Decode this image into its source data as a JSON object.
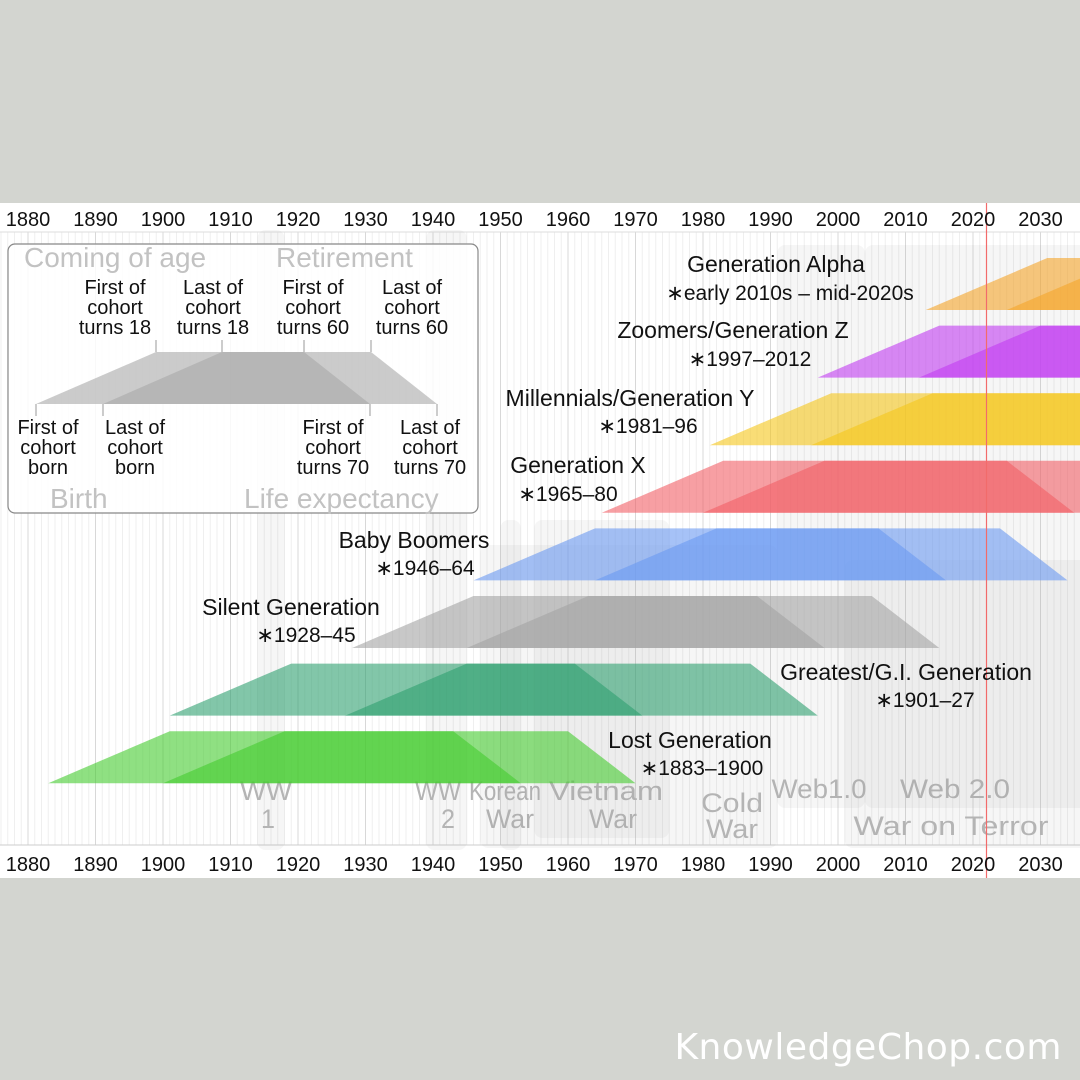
{
  "chart_data": {
    "type": "timeline",
    "x_axis": {
      "ticks": [
        1880,
        1890,
        1900,
        1910,
        1920,
        1930,
        1940,
        1950,
        1960,
        1970,
        1980,
        1990,
        2000,
        2010,
        2020,
        2030
      ],
      "range": [
        1876,
        2037
      ]
    },
    "current_year_marker": 2022,
    "generations": [
      {
        "name": "Generation Alpha",
        "dates": "∗early 2010s – mid-2020s",
        "start": 2013,
        "end": 2025,
        "color": "#f5a52a"
      },
      {
        "name": "Zoomers/Generation Z",
        "dates": "∗1997–2012",
        "start": 1997,
        "end": 2012,
        "color": "#c23cf2"
      },
      {
        "name": "Millennials/Generation Y",
        "dates": "∗1981–96",
        "start": 1981,
        "end": 1996,
        "color": "#f5c61a"
      },
      {
        "name": "Generation X",
        "dates": "∗1965–80",
        "start": 1965,
        "end": 1980,
        "color": "#f25f65"
      },
      {
        "name": "Baby Boomers",
        "dates": "∗1946–64",
        "start": 1946,
        "end": 1964,
        "color": "#6b9af2"
      },
      {
        "name": "Silent Generation",
        "dates": "∗1928–45",
        "start": 1928,
        "end": 1945,
        "color": "#a3a3a3"
      },
      {
        "name": "Greatest/G.I. Generation",
        "dates": "∗1901–27",
        "start": 1901,
        "end": 1927,
        "color": "#2fa070"
      },
      {
        "name": "Lost Generation",
        "dates": "∗1883–1900",
        "start": 1883,
        "end": 1900,
        "color": "#45cc2e"
      }
    ],
    "cohort_model": {
      "coming_of_age": 18,
      "retirement": 60,
      "life_expectancy": 70
    },
    "events": [
      {
        "label": [
          "WW",
          "1"
        ],
        "start": 1914,
        "end": 1918
      },
      {
        "label": [
          "WW",
          "2"
        ],
        "start": 1939,
        "end": 1945
      },
      {
        "label": [
          "Korean",
          "War"
        ],
        "start": 1950,
        "end": 1953
      },
      {
        "label": [
          "Vietnam",
          "War"
        ],
        "start": 1955,
        "end": 1975
      },
      {
        "label": [
          "Cold",
          "War"
        ],
        "start": 1947,
        "end": 1991
      },
      {
        "label": [
          "Web1.0"
        ],
        "start": 1991,
        "end": 2004
      },
      {
        "label": [
          "Web 2.0"
        ],
        "start": 2004,
        "end": 2037
      },
      {
        "label": [
          "War on Terror"
        ],
        "start": 2001,
        "end": 2037
      }
    ],
    "legend": {
      "headers": {
        "coming_of_age": "Coming of age",
        "retirement": "Retirement",
        "birth": "Birth",
        "life_expectancy": "Life expectancy"
      },
      "top_labels": [
        [
          "First of",
          "cohort",
          "turns 18"
        ],
        [
          "Last of",
          "cohort",
          "turns 18"
        ],
        [
          "First of",
          "cohort",
          "turns 60"
        ],
        [
          "Last of",
          "cohort",
          "turns 60"
        ]
      ],
      "bottom_labels": [
        [
          "First of",
          "cohort",
          "born"
        ],
        [
          "Last of",
          "cohort",
          "born"
        ],
        [
          "First of",
          "cohort",
          "turns 70"
        ],
        [
          "Last of",
          "cohort",
          "turns 70"
        ]
      ]
    }
  },
  "watermark": "KnowledgeChop.com"
}
